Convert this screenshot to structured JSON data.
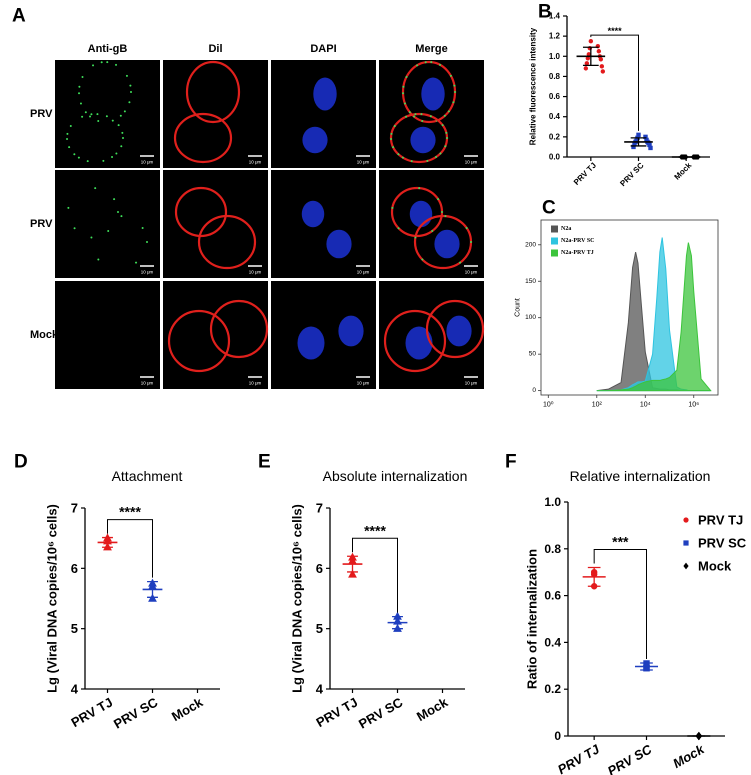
{
  "panel_a": {
    "label": "A",
    "columns": [
      "Anti-gB",
      "Dil",
      "DAPI",
      "Merge"
    ],
    "rows": [
      "PRV TJ",
      "PRV SC",
      "Mock"
    ],
    "scale_bar": "10 μm"
  },
  "chart_data": [
    {
      "type": "dot",
      "label": "B",
      "ylabel": "Relative fluorescence intensity",
      "significance": "****",
      "categories": [
        "PRV TJ",
        "PRV SC",
        "Mock"
      ],
      "ylim": [
        0,
        1.4
      ],
      "yticks": [
        {
          "value": 0,
          "label": "0.0"
        },
        0.2,
        0.4,
        0.6,
        0.8,
        {
          "value": 1,
          "label": "1.0"
        },
        1.2,
        1.4
      ],
      "groups": [
        {
          "color": "#e31a1c",
          "marker": "circle",
          "points": [
            1.15,
            1.1,
            1.08,
            1.05,
            1.02,
            1.0,
            0.98,
            0.97,
            0.93,
            0.9,
            0.88,
            0.85
          ],
          "mean": 1.0,
          "sd": 0.09
        },
        {
          "color": "#1f3fbf",
          "marker": "square",
          "points": [
            0.22,
            0.2,
            0.19,
            0.17,
            0.16,
            0.15,
            0.15,
            0.14,
            0.13,
            0.12,
            0.1,
            0.09
          ],
          "mean": 0.15,
          "sd": 0.04
        },
        {
          "color": "#000000",
          "marker": "diamond",
          "points": [
            0,
            0,
            0,
            0,
            0,
            0,
            0,
            0,
            0,
            0,
            0,
            0
          ],
          "mean": 0,
          "sd": 0
        }
      ]
    },
    {
      "type": "histogram_density",
      "label": "C",
      "ylabel": "Count",
      "log_x": true,
      "xlim": [
        0.5,
        10000000
      ],
      "xticks": [
        {
          "value": 1,
          "label": "10⁰"
        },
        {
          "value": 100,
          "label": "10²"
        },
        {
          "value": 10000,
          "label": "10⁴"
        },
        {
          "value": 1000000,
          "label": "10⁶"
        }
      ],
      "ylim": [
        -6,
        234
      ],
      "yticks": [
        0,
        50,
        100,
        150,
        200
      ],
      "legend": "upper left",
      "x": [
        100,
        300,
        1000,
        2000,
        3000,
        4000,
        5000,
        7000,
        10000,
        20000,
        30000,
        40000,
        50000,
        70000,
        100000,
        200000,
        300000,
        500000,
        600000,
        800000,
        1000000,
        2000000,
        5000000
      ],
      "series": [
        {
          "name": "N2a",
          "color": "#555555",
          "values": [
            0,
            2,
            11,
            93,
            169,
            190,
            175,
            115,
            53,
            4,
            3,
            2,
            2,
            2,
            1,
            1,
            0,
            0,
            0,
            0,
            0,
            0,
            0
          ]
        },
        {
          "name": "N2a-PRV SC",
          "color": "#2ec4e0",
          "values": [
            0,
            0,
            1,
            4,
            8,
            10,
            12,
            12,
            13,
            50,
            128,
            190,
            210,
            167,
            83,
            5,
            2,
            1,
            0,
            0,
            0,
            0,
            0
          ]
        },
        {
          "name": "N2a-PRV TJ",
          "color": "#3cc43c",
          "values": [
            0,
            0,
            1,
            2,
            4,
            6,
            8,
            10,
            12,
            14,
            14,
            14,
            15,
            16,
            18,
            28,
            80,
            185,
            203,
            185,
            136,
            16,
            0
          ]
        }
      ]
    },
    {
      "type": "dot",
      "label": "D",
      "title": "Attachment",
      "ylabel": "Lg (Viral DNA copies/10⁶ cells)",
      "significance": "****",
      "categories": [
        "PRV TJ",
        "PRV SC",
        "Mock"
      ],
      "ylim": [
        4,
        7
      ],
      "yticks": [
        4,
        5,
        6,
        7
      ],
      "groups": [
        {
          "color": "#e31a1c",
          "marker": "triangle",
          "points": [
            6.5,
            6.35,
            6.45
          ],
          "mean": 6.43,
          "sd": 0.08
        },
        {
          "color": "#1f3fbf",
          "marker": "triangle",
          "points": [
            5.75,
            5.5,
            5.7
          ],
          "mean": 5.65,
          "sd": 0.13
        }
      ]
    },
    {
      "type": "dot",
      "label": "E",
      "title": "Absolute internalization",
      "ylabel": "Lg (Viral DNA copies/10⁶ cells)",
      "significance": "****",
      "categories": [
        "PRV TJ",
        "PRV SC",
        "Mock"
      ],
      "ylim": [
        4,
        7
      ],
      "yticks": [
        4,
        5,
        6,
        7
      ],
      "groups": [
        {
          "color": "#e31a1c",
          "marker": "triangle",
          "points": [
            6.18,
            5.9,
            6.12
          ],
          "mean": 6.07,
          "sd": 0.13
        },
        {
          "color": "#1f3fbf",
          "marker": "triangle",
          "points": [
            5.2,
            5.0,
            5.12
          ],
          "mean": 5.1,
          "sd": 0.1
        }
      ]
    },
    {
      "type": "dot",
      "label": "F",
      "title": "Relative internalization",
      "ylabel": "Ratio of internalization",
      "significance": "***",
      "categories": [
        "PRV TJ",
        "PRV SC",
        "Mock"
      ],
      "ylim": [
        0,
        1
      ],
      "yticks": [
        0,
        0.2,
        0.4,
        0.6,
        0.8,
        {
          "value": 1,
          "label": "1.0"
        }
      ],
      "legend": "right",
      "groups": [
        {
          "name": "PRV TJ",
          "color": "#e31a1c",
          "marker": "circle",
          "points": [
            0.7,
            0.64,
            0.69
          ],
          "mean": 0.68,
          "sd": 0.04
        },
        {
          "name": "PRV SC",
          "color": "#1f3fbf",
          "marker": "square",
          "points": [
            0.31,
            0.29,
            0.29
          ],
          "mean": 0.297,
          "sd": 0.015
        },
        {
          "name": "Mock",
          "color": "#000000",
          "marker": "diamond",
          "points": [
            0,
            0,
            0,
            0
          ],
          "mean": 0,
          "sd": 0
        }
      ]
    }
  ]
}
